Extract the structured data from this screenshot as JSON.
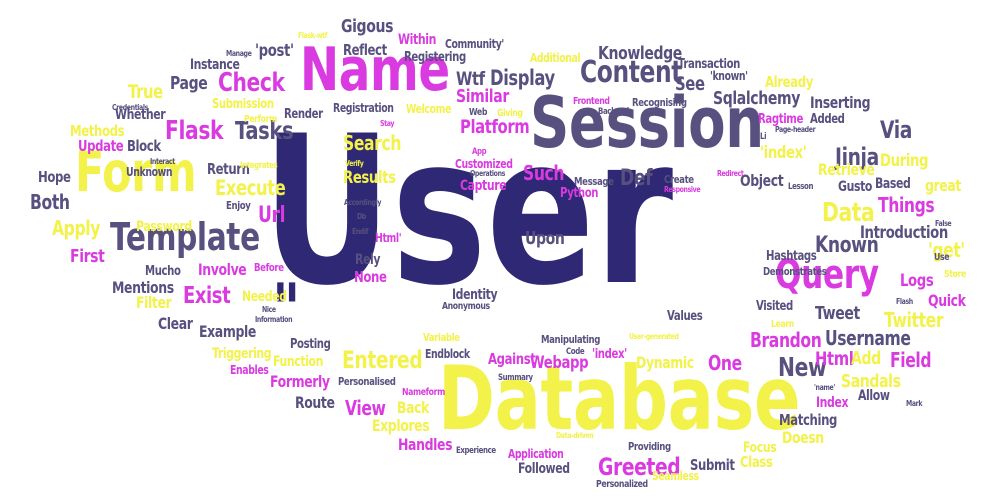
{
  "colors": {
    "navy": "#2f2874",
    "purple": "#58507e",
    "magenta": "#d93be0",
    "yellow": "#f2f24a",
    "gray": "#555555"
  },
  "words": [
    {
      "text": "User",
      "color": "navy"
    },
    {
      "text": "Database",
      "color": "yellow"
    },
    {
      "text": "Session",
      "color": "purple"
    },
    {
      "text": "Name",
      "color": "magenta"
    },
    {
      "text": "Form",
      "color": "yellow"
    },
    {
      "text": "Template",
      "color": "purple"
    },
    {
      "text": "Query",
      "color": "magenta"
    },
    {
      "text": "Content",
      "color": "purple"
    },
    {
      "text": "\"",
      "color": "navy"
    },
    {
      "text": "Check",
      "color": "magenta"
    },
    {
      "text": "Flask",
      "color": "magenta"
    },
    {
      "text": "Tasks",
      "color": "purple"
    },
    {
      "text": "Search",
      "color": "yellow"
    },
    {
      "text": "Jinja",
      "color": "purple"
    },
    {
      "text": "Via",
      "color": "purple"
    },
    {
      "text": "Display",
      "color": "purple"
    },
    {
      "text": "Wtf",
      "color": "purple"
    },
    {
      "text": "Greeted",
      "color": "magenta"
    },
    {
      "text": "Known",
      "color": "purple"
    },
    {
      "text": "New",
      "color": "purple"
    },
    {
      "text": "Such",
      "color": "magenta"
    },
    {
      "text": "Def",
      "color": "purple"
    },
    {
      "text": "Data",
      "color": "yellow"
    },
    {
      "text": "Execute",
      "color": "yellow"
    },
    {
      "text": "Both",
      "color": "purple"
    },
    {
      "text": "Url",
      "color": "magenta"
    },
    {
      "text": "Apply",
      "color": "yellow"
    },
    {
      "text": "First",
      "color": "magenta"
    },
    {
      "text": "Exist",
      "color": "magenta"
    },
    {
      "text": "Entered",
      "color": "yellow"
    },
    {
      "text": "View",
      "color": "magenta"
    },
    {
      "text": "Upon",
      "color": "purple"
    },
    {
      "text": "Platform",
      "color": "magenta"
    },
    {
      "text": "Similar",
      "color": "magenta"
    },
    {
      "text": "Results",
      "color": "yellow"
    },
    {
      "text": "True",
      "color": "yellow"
    },
    {
      "text": "Page",
      "color": "purple"
    },
    {
      "text": "Reflect",
      "color": "purple"
    },
    {
      "text": "Gigous",
      "color": "purple"
    },
    {
      "text": "'post'",
      "color": "purple"
    },
    {
      "text": "Knowledge",
      "color": "purple"
    },
    {
      "text": "See",
      "color": "purple"
    },
    {
      "text": "Sqlalchemy",
      "color": "purple"
    },
    {
      "text": "Inserting",
      "color": "purple"
    },
    {
      "text": "Username",
      "color": "purple"
    },
    {
      "text": "Brandon",
      "color": "magenta"
    },
    {
      "text": "Html",
      "color": "magenta"
    },
    {
      "text": "Add",
      "color": "yellow"
    },
    {
      "text": "Field",
      "color": "magenta"
    },
    {
      "text": "Tweet",
      "color": "purple"
    },
    {
      "text": "Twitter",
      "color": "yellow"
    },
    {
      "text": "Logs",
      "color": "magenta"
    },
    {
      "text": "Quick",
      "color": "magenta"
    },
    {
      "text": "'get'",
      "color": "yellow"
    },
    {
      "text": "Introduction",
      "color": "purple"
    },
    {
      "text": "Things",
      "color": "magenta"
    },
    {
      "text": "Based",
      "color": "purple"
    },
    {
      "text": "great",
      "color": "yellow"
    },
    {
      "text": "Gusto",
      "color": "purple"
    },
    {
      "text": "Retrieve",
      "color": "yellow"
    },
    {
      "text": "During",
      "color": "yellow"
    },
    {
      "text": "Object",
      "color": "purple"
    },
    {
      "text": "'index'",
      "color": "yellow"
    },
    {
      "text": "Ragtime",
      "color": "magenta"
    },
    {
      "text": "Added",
      "color": "purple"
    },
    {
      "text": "Already",
      "color": "yellow"
    },
    {
      "text": "Transaction",
      "color": "purple"
    },
    {
      "text": "'known'",
      "color": "purple"
    },
    {
      "text": "Additional",
      "color": "yellow"
    },
    {
      "text": "Community'",
      "color": "purple"
    },
    {
      "text": "Within",
      "color": "magenta"
    },
    {
      "text": "Registering",
      "color": "purple"
    },
    {
      "text": "Instance",
      "color": "purple"
    },
    {
      "text": "Whether",
      "color": "purple"
    },
    {
      "text": "Methods",
      "color": "yellow"
    },
    {
      "text": "Update",
      "color": "magenta"
    },
    {
      "text": "Block",
      "color": "purple"
    },
    {
      "text": "Submission",
      "color": "yellow"
    },
    {
      "text": "Render",
      "color": "purple"
    },
    {
      "text": "Registration",
      "color": "purple"
    },
    {
      "text": "Welcome",
      "color": "yellow"
    },
    {
      "text": "Return",
      "color": "purple"
    },
    {
      "text": "Hope",
      "color": "purple"
    },
    {
      "text": "Unknown",
      "color": "purple"
    },
    {
      "text": "Enjoy",
      "color": "purple"
    },
    {
      "text": "Password",
      "color": "yellow"
    },
    {
      "text": "Involve",
      "color": "magenta"
    },
    {
      "text": "Mucho",
      "color": "purple"
    },
    {
      "text": "Before",
      "color": "magenta"
    },
    {
      "text": "Mentions",
      "color": "purple"
    },
    {
      "text": "Filter",
      "color": "yellow"
    },
    {
      "text": "Clear",
      "color": "purple"
    },
    {
      "text": "Needed",
      "color": "yellow"
    },
    {
      "text": "Example",
      "color": "purple"
    },
    {
      "text": "Triggering",
      "color": "yellow"
    },
    {
      "text": "Function",
      "color": "yellow"
    },
    {
      "text": "Enables",
      "color": "magenta"
    },
    {
      "text": "Formerly",
      "color": "magenta"
    },
    {
      "text": "Route",
      "color": "purple"
    },
    {
      "text": "Posting",
      "color": "purple"
    },
    {
      "text": "Personalised",
      "color": "purple"
    },
    {
      "text": "Endblock",
      "color": "purple"
    },
    {
      "text": "Against",
      "color": "magenta"
    },
    {
      "text": "Back",
      "color": "yellow"
    },
    {
      "text": "Explores",
      "color": "yellow"
    },
    {
      "text": "Handles",
      "color": "magenta"
    },
    {
      "text": "Rely",
      "color": "purple"
    },
    {
      "text": "None",
      "color": "magenta"
    },
    {
      "text": "Identity",
      "color": "purple"
    },
    {
      "text": "Anonymous",
      "color": "purple"
    },
    {
      "text": "Variable",
      "color": "yellow"
    },
    {
      "text": "Webapp",
      "color": "magenta"
    },
    {
      "text": "Dynamic",
      "color": "yellow"
    },
    {
      "text": "One",
      "color": "magenta"
    },
    {
      "text": "Values",
      "color": "purple"
    },
    {
      "text": "Manipulating",
      "color": "purple"
    },
    {
      "text": "'index'",
      "color": "magenta"
    },
    {
      "text": "Capture",
      "color": "magenta"
    },
    {
      "text": "Python",
      "color": "magenta"
    },
    {
      "text": "Message",
      "color": "purple"
    },
    {
      "text": "Customized",
      "color": "magenta"
    },
    {
      "text": "Create",
      "color": "purple"
    },
    {
      "text": "Hashtags",
      "color": "purple"
    },
    {
      "text": "Demonstrates",
      "color": "purple"
    },
    {
      "text": "Visited",
      "color": "purple"
    },
    {
      "text": "Index",
      "color": "magenta"
    },
    {
      "text": "Sandals",
      "color": "yellow"
    },
    {
      "text": "Matching",
      "color": "purple"
    },
    {
      "text": "Allow",
      "color": "purple"
    },
    {
      "text": "Doesn",
      "color": "yellow"
    },
    {
      "text": "Focus",
      "color": "yellow"
    },
    {
      "text": "Class",
      "color": "yellow"
    },
    {
      "text": "Submit",
      "color": "purple"
    },
    {
      "text": "Followed",
      "color": "purple"
    },
    {
      "text": "Application",
      "color": "magenta"
    },
    {
      "text": "Providing",
      "color": "purple"
    },
    {
      "text": "Seamless",
      "color": "yellow"
    },
    {
      "text": "Personalized",
      "color": "purple"
    },
    {
      "text": "Experience",
      "color": "purple"
    },
    {
      "text": "Summary",
      "color": "purple"
    },
    {
      "text": "Nameform",
      "color": "magenta"
    },
    {
      "text": "Code",
      "color": "purple"
    },
    {
      "text": "Frontend",
      "color": "magenta"
    },
    {
      "text": "Backend",
      "color": "purple"
    },
    {
      "text": "Recognising",
      "color": "purple"
    },
    {
      "text": "Giving",
      "color": "yellow"
    },
    {
      "text": "Web",
      "color": "purple"
    },
    {
      "text": "App",
      "color": "magenta"
    },
    {
      "text": "Operations",
      "color": "purple"
    },
    {
      "text": "Integrates",
      "color": "yellow"
    },
    {
      "text": "Verify",
      "color": "yellow"
    },
    {
      "text": "Db",
      "color": "purple"
    },
    {
      "text": "Endif",
      "color": "purple"
    },
    {
      "text": "Html'",
      "color": "magenta"
    },
    {
      "text": "Perform",
      "color": "yellow"
    },
    {
      "text": "Credentials",
      "color": "purple"
    },
    {
      "text": "Interact",
      "color": "purple"
    },
    {
      "text": "Manage",
      "color": "purple"
    },
    {
      "text": "Mark",
      "color": "purple"
    },
    {
      "text": "Flash",
      "color": "purple"
    },
    {
      "text": "False",
      "color": "purple"
    },
    {
      "text": "Use",
      "color": "purple"
    },
    {
      "text": "Store",
      "color": "yellow"
    },
    {
      "text": "Learn",
      "color": "yellow"
    },
    {
      "text": "'name'",
      "color": "purple"
    },
    {
      "text": "Page-header",
      "color": "purple"
    },
    {
      "text": "Lesson",
      "color": "purple"
    },
    {
      "text": "Redirect",
      "color": "magenta"
    },
    {
      "text": "Responsive",
      "color": "magenta"
    },
    {
      "text": "Information",
      "color": "purple"
    },
    {
      "text": "Nice",
      "color": "purple"
    },
    {
      "text": "Stay",
      "color": "magenta"
    },
    {
      "text": "Accordingly",
      "color": "purple"
    },
    {
      "text": "Li",
      "color": "purple"
    },
    {
      "text": "Flask-wtf",
      "color": "yellow"
    },
    {
      "text": "Data-driven",
      "color": "yellow"
    },
    {
      "text": "User-generated",
      "color": "yellow"
    }
  ]
}
